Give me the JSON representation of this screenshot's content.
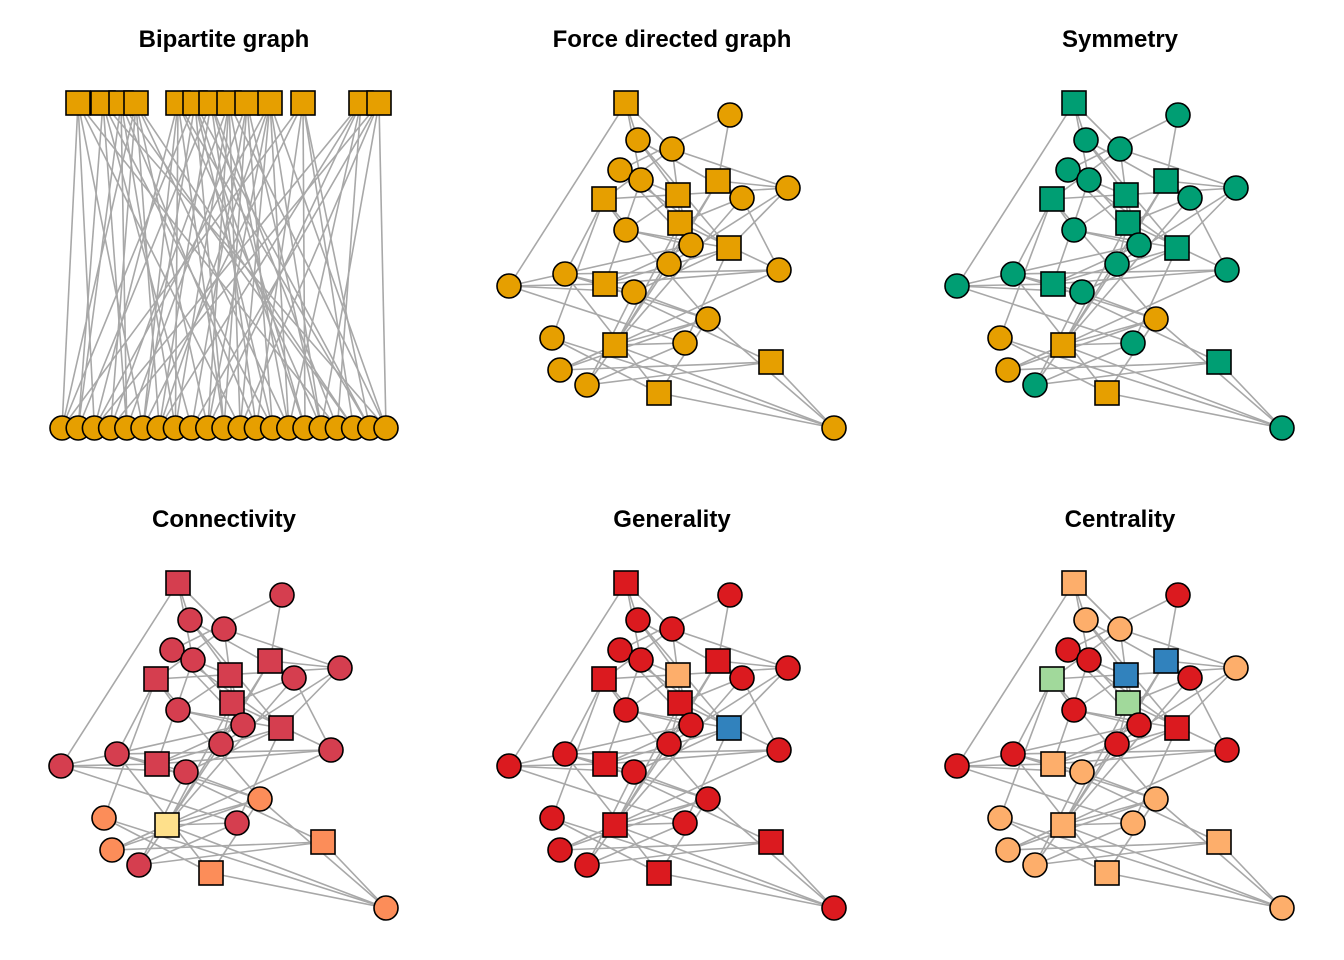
{
  "colors": {
    "edge": "#a8a8a8",
    "orange": "#e69f00",
    "green": "#009e73",
    "red": "#db1a1f",
    "crimson": "#d53e4f",
    "salmon": "#fc8d59",
    "pale_yellow": "#fee08b",
    "blue": "#3182bd",
    "light_orange": "#fdae6b",
    "mint": "#a1d99b"
  },
  "panels": [
    {
      "id": "bipartite",
      "title": "Bipartite graph"
    },
    {
      "id": "force",
      "title": "Force directed graph"
    },
    {
      "id": "symmetry",
      "title": "Symmetry"
    },
    {
      "id": "connectivity",
      "title": "Connectivity"
    },
    {
      "id": "generality",
      "title": "Generality"
    },
    {
      "id": "centrality",
      "title": "Centrality"
    }
  ],
  "network": {
    "nodes": [
      {
        "id": "S1",
        "shape": "square"
      },
      {
        "id": "C1",
        "shape": "circle"
      },
      {
        "id": "C2",
        "shape": "circle"
      },
      {
        "id": "C3",
        "shape": "circle"
      },
      {
        "id": "C4",
        "shape": "circle"
      },
      {
        "id": "C5",
        "shape": "circle"
      },
      {
        "id": "S2",
        "shape": "square"
      },
      {
        "id": "S3",
        "shape": "square"
      },
      {
        "id": "S4",
        "shape": "square"
      },
      {
        "id": "C6",
        "shape": "circle"
      },
      {
        "id": "C7",
        "shape": "circle"
      },
      {
        "id": "S5",
        "shape": "square"
      },
      {
        "id": "C8",
        "shape": "circle"
      },
      {
        "id": "C9",
        "shape": "circle"
      },
      {
        "id": "S6",
        "shape": "square"
      },
      {
        "id": "C10",
        "shape": "circle"
      },
      {
        "id": "C11",
        "shape": "circle"
      },
      {
        "id": "C12",
        "shape": "circle"
      },
      {
        "id": "S7",
        "shape": "square"
      },
      {
        "id": "C13",
        "shape": "circle"
      },
      {
        "id": "C14",
        "shape": "circle"
      },
      {
        "id": "C15",
        "shape": "circle"
      },
      {
        "id": "C16",
        "shape": "circle"
      },
      {
        "id": "S8",
        "shape": "square"
      },
      {
        "id": "C17",
        "shape": "circle"
      },
      {
        "id": "C18",
        "shape": "circle"
      },
      {
        "id": "C19",
        "shape": "circle"
      },
      {
        "id": "S9",
        "shape": "square"
      },
      {
        "id": "C20",
        "shape": "circle"
      },
      {
        "id": "S10",
        "shape": "square"
      },
      {
        "id": "C21",
        "shape": "circle"
      }
    ],
    "edges": [
      [
        "S1",
        "C2"
      ],
      [
        "S1",
        "C3"
      ],
      [
        "S1",
        "C5"
      ],
      [
        "S1",
        "C13"
      ],
      [
        "C1",
        "C4"
      ],
      [
        "C1",
        "S2"
      ],
      [
        "C2",
        "S3"
      ],
      [
        "C2",
        "C6"
      ],
      [
        "C2",
        "S6"
      ],
      [
        "C3",
        "S4"
      ],
      [
        "C3",
        "S3"
      ],
      [
        "C3",
        "C7"
      ],
      [
        "C4",
        "C5"
      ],
      [
        "C4",
        "S6"
      ],
      [
        "C4",
        "C9"
      ],
      [
        "C5",
        "S3"
      ],
      [
        "C5",
        "S5"
      ],
      [
        "C5",
        "S7"
      ],
      [
        "S2",
        "C7"
      ],
      [
        "S2",
        "C6"
      ],
      [
        "S2",
        "C10"
      ],
      [
        "S2",
        "S8"
      ],
      [
        "S3",
        "S5"
      ],
      [
        "S3",
        "C9"
      ],
      [
        "S3",
        "C8"
      ],
      [
        "S4",
        "C11"
      ],
      [
        "S4",
        "C8"
      ],
      [
        "S4",
        "C15"
      ],
      [
        "S4",
        "C16"
      ],
      [
        "C6",
        "S8"
      ],
      [
        "C6",
        "S5"
      ],
      [
        "C6",
        "C12"
      ],
      [
        "C7",
        "C10"
      ],
      [
        "C7",
        "S4"
      ],
      [
        "C7",
        "S6"
      ],
      [
        "S5",
        "C10"
      ],
      [
        "S5",
        "C12"
      ],
      [
        "S5",
        "S8"
      ],
      [
        "C8",
        "C9"
      ],
      [
        "C8",
        "S6"
      ],
      [
        "C9",
        "C13"
      ],
      [
        "C9",
        "S7"
      ],
      [
        "S6",
        "C14"
      ],
      [
        "S6",
        "C17"
      ],
      [
        "S6",
        "S7"
      ],
      [
        "C10",
        "S8"
      ],
      [
        "C11",
        "C12"
      ],
      [
        "C11",
        "S7"
      ],
      [
        "C11",
        "C15"
      ],
      [
        "C11",
        "S10"
      ],
      [
        "C12",
        "C18"
      ],
      [
        "C12",
        "S7"
      ],
      [
        "S7",
        "C14"
      ],
      [
        "S7",
        "S9"
      ],
      [
        "S7",
        "C13"
      ],
      [
        "C13",
        "C14"
      ],
      [
        "C13",
        "C17"
      ],
      [
        "C14",
        "C15"
      ],
      [
        "C14",
        "C19"
      ],
      [
        "C15",
        "S8"
      ],
      [
        "C15",
        "S10"
      ],
      [
        "C15",
        "C18"
      ],
      [
        "C15",
        "C20"
      ],
      [
        "C16",
        "C20"
      ],
      [
        "C16",
        "S10"
      ],
      [
        "S8",
        "C19"
      ],
      [
        "S8",
        "C18"
      ],
      [
        "S8",
        "C20"
      ],
      [
        "S8",
        "C21"
      ],
      [
        "S8",
        "C17"
      ],
      [
        "C17",
        "C19"
      ],
      [
        "C18",
        "S9"
      ],
      [
        "C19",
        "S9"
      ],
      [
        "S9",
        "C20"
      ],
      [
        "C20",
        "S10"
      ],
      [
        "S10",
        "C21"
      ]
    ]
  },
  "bipartite": {
    "top_count": 13,
    "bottom_count": 21,
    "edges": [
      [
        0,
        0
      ],
      [
        0,
        2
      ],
      [
        0,
        5
      ],
      [
        0,
        11
      ],
      [
        0,
        17
      ],
      [
        1,
        1
      ],
      [
        1,
        4
      ],
      [
        1,
        8
      ],
      [
        1,
        13
      ],
      [
        1,
        20
      ],
      [
        2,
        0
      ],
      [
        2,
        3
      ],
      [
        2,
        6
      ],
      [
        2,
        9
      ],
      [
        2,
        14
      ],
      [
        2,
        18
      ],
      [
        3,
        2
      ],
      [
        3,
        5
      ],
      [
        3,
        7
      ],
      [
        3,
        10
      ],
      [
        3,
        16
      ],
      [
        3,
        19
      ],
      [
        4,
        1
      ],
      [
        4,
        6
      ],
      [
        4,
        12
      ],
      [
        4,
        15
      ],
      [
        4,
        17
      ],
      [
        5,
        3
      ],
      [
        5,
        7
      ],
      [
        5,
        9
      ],
      [
        5,
        11
      ],
      [
        5,
        14
      ],
      [
        5,
        20
      ],
      [
        6,
        4
      ],
      [
        6,
        8
      ],
      [
        6,
        10
      ],
      [
        6,
        13
      ],
      [
        6,
        16
      ],
      [
        7,
        0
      ],
      [
        7,
        5
      ],
      [
        7,
        12
      ],
      [
        7,
        15
      ],
      [
        7,
        18
      ],
      [
        7,
        19
      ],
      [
        8,
        2
      ],
      [
        8,
        6
      ],
      [
        8,
        9
      ],
      [
        8,
        14
      ],
      [
        8,
        17
      ],
      [
        9,
        3
      ],
      [
        9,
        8
      ],
      [
        9,
        11
      ],
      [
        9,
        16
      ],
      [
        9,
        20
      ],
      [
        10,
        1
      ],
      [
        10,
        4
      ],
      [
        10,
        7
      ],
      [
        10,
        12
      ],
      [
        10,
        18
      ],
      [
        11,
        0
      ],
      [
        11,
        5
      ],
      [
        11,
        10
      ],
      [
        11,
        13
      ],
      [
        11,
        15
      ],
      [
        11,
        19
      ],
      [
        12,
        2
      ],
      [
        12,
        6
      ],
      [
        12,
        9
      ],
      [
        12,
        11
      ],
      [
        12,
        14
      ],
      [
        12,
        16
      ],
      [
        12,
        20
      ]
    ]
  },
  "colorings": {
    "symmetry": {
      "default": "green",
      "overrides": {
        "S10": "orange",
        "C15": "orange",
        "C16": "orange",
        "C18": "orange",
        "S8": "orange",
        "C21": "orange"
      }
    },
    "connectivity": {
      "default": "crimson",
      "overrides": {
        "S8": "salmon",
        "S9": "salmon",
        "S10": "salmon",
        "C15": "salmon",
        "C18": "salmon",
        "C20": "salmon",
        "C16": "salmon",
        "S7": "crimson",
        "C21": "blue",
        "S8b": "pale_yellow"
      },
      "by_id": {
        "S8": "pale_yellow",
        "S10": "salmon",
        "C15": "salmon",
        "C18": "salmon",
        "C16": "salmon",
        "C20": "salmon",
        "S9": "salmon",
        "C21": "blue"
      }
    },
    "generality": {
      "default": "red",
      "by_id": {
        "S6": "blue",
        "S3": "light_orange"
      }
    },
    "centrality": {
      "default": "light_orange",
      "by_id": {
        "C1": "red",
        "C4": "red",
        "C5": "red",
        "C6": "red",
        "C8": "red",
        "C9": "red",
        "C10": "red",
        "C11": "red",
        "C12": "red",
        "C13": "red",
        "S6": "red",
        "S4": "mint",
        "S5": "mint",
        "S3": "blue",
        "S2": "blue"
      }
    }
  }
}
